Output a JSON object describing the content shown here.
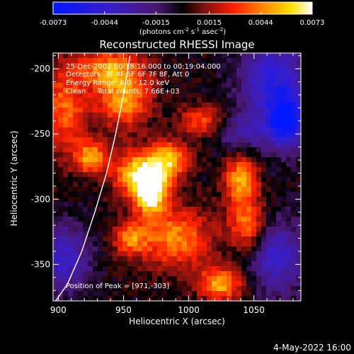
{
  "colorbar": {
    "ticks": [
      "-0.0073",
      "-0.0044",
      "-0.0015",
      "0.0015",
      "0.0044",
      "0.0073"
    ],
    "tick_values": [
      -0.0073,
      -0.0044,
      -0.0015,
      0.0015,
      0.0044,
      0.0073
    ],
    "vmin": -0.0073,
    "vmax": 0.0073,
    "unit_main": "(photons cm",
    "unit_sup1": "-2",
    "unit_mid1": " s",
    "unit_sup2": "-1",
    "unit_mid2": " asec",
    "unit_sup3": "-2",
    "unit_end": ")"
  },
  "title": "Reconstructed RHESSI Image",
  "info": {
    "time": "25-Dec-2002 00:18:16.000 to 00:19:04.000",
    "detectors": "Detectors: 3F 4F 5F 6F 7F 8F, Att 0",
    "energy": "Energy Range: 6.0 - 12.0 keV",
    "method": "Clean     Total counts: 7.66E+03",
    "peak": "Position of Peak = [971,-303]"
  },
  "footer": "4-May-2022 16:00",
  "chart_data": {
    "type": "heatmap",
    "title": "Reconstructed RHESSI Image",
    "xlabel": "Heliocentric X (arcsec)",
    "ylabel": "Heliocentric Y (arcsec)",
    "xlim": [
      896,
      1086
    ],
    "ylim": [
      -378,
      -188
    ],
    "xticks": [
      900,
      950,
      1000,
      1050
    ],
    "xtick_labels": [
      "900",
      "950",
      "1000",
      "1050"
    ],
    "yticks": [
      -200,
      -250,
      -300,
      -350
    ],
    "ytick_labels": [
      "-200",
      "-250",
      "-300",
      "-350"
    ],
    "peak": [
      971,
      -303
    ],
    "limb_points": [
      [
        955,
        -190
      ],
      [
        950,
        -220
      ],
      [
        944,
        -250
      ],
      [
        937,
        -280
      ],
      [
        928,
        -310
      ],
      [
        918,
        -340
      ],
      [
        907,
        -365
      ],
      [
        898,
        -378
      ]
    ],
    "sources": [
      {
        "x": 971,
        "y": -296,
        "sx": 9,
        "sy": 11,
        "v": 0.0072
      },
      {
        "x": 962,
        "y": -280,
        "sx": 14,
        "sy": 12,
        "v": 0.006
      },
      {
        "x": 985,
        "y": -270,
        "sx": 11,
        "sy": 10,
        "v": 0.005
      },
      {
        "x": 950,
        "y": -225,
        "sx": 15,
        "sy": 14,
        "v": 0.0048
      },
      {
        "x": 940,
        "y": -200,
        "sx": 18,
        "sy": 10,
        "v": 0.0046
      },
      {
        "x": 925,
        "y": -268,
        "sx": 9,
        "sy": 9,
        "v": 0.005
      },
      {
        "x": 990,
        "y": -330,
        "sx": 20,
        "sy": 16,
        "v": 0.0045
      },
      {
        "x": 1040,
        "y": -285,
        "sx": 9,
        "sy": 14,
        "v": 0.005
      },
      {
        "x": 1045,
        "y": -320,
        "sx": 10,
        "sy": 14,
        "v": 0.0042
      },
      {
        "x": 1025,
        "y": -365,
        "sx": 12,
        "sy": 9,
        "v": 0.0052
      },
      {
        "x": 905,
        "y": -230,
        "sx": 12,
        "sy": 24,
        "v": 0.0038
      },
      {
        "x": 1010,
        "y": -240,
        "sx": 12,
        "sy": 8,
        "v": 0.0036
      },
      {
        "x": 955,
        "y": -330,
        "sx": 9,
        "sy": 9,
        "v": 0.004
      },
      {
        "x": 1065,
        "y": -210,
        "sx": 18,
        "sy": 26,
        "v": -0.0048
      },
      {
        "x": 1075,
        "y": -240,
        "sx": 10,
        "sy": 14,
        "v": -0.006
      },
      {
        "x": 1068,
        "y": -345,
        "sx": 16,
        "sy": 20,
        "v": -0.004
      },
      {
        "x": 905,
        "y": -345,
        "sx": 14,
        "sy": 18,
        "v": -0.004
      },
      {
        "x": 1040,
        "y": -250,
        "sx": 14,
        "sy": 10,
        "v": -0.0025
      }
    ]
  }
}
